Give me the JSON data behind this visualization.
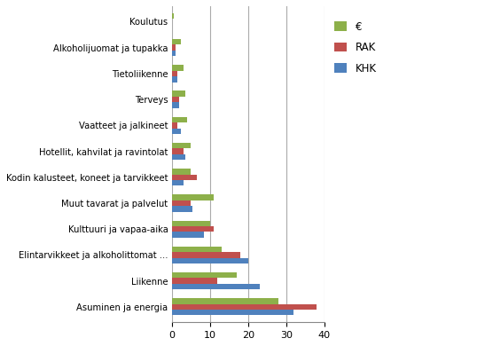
{
  "categories": [
    "Asuminen ja energia",
    "Liikenne",
    "Elintarvikkeet ja alkoholittomat ...",
    "Kulttuuri ja vapaa-aika",
    "Muut tavarat ja palvelut",
    "Kodin kalusteet, koneet ja tarvikkeet",
    "Hotellit, kahvilat ja ravintolat",
    "Vaatteet ja jalkineet",
    "Terveys",
    "Tietoliikenne",
    "Alkoholijuomat ja tupakka",
    "Koulutus"
  ],
  "euro": [
    28.0,
    17.0,
    13.0,
    10.0,
    11.0,
    5.0,
    5.0,
    4.0,
    3.5,
    3.0,
    2.5,
    0.5
  ],
  "rak": [
    38.0,
    12.0,
    18.0,
    11.0,
    5.0,
    6.5,
    3.0,
    1.5,
    2.0,
    1.5,
    1.0,
    0.2
  ],
  "khk": [
    32.0,
    23.0,
    20.0,
    8.5,
    5.5,
    3.0,
    3.5,
    2.5,
    2.0,
    1.5,
    1.0,
    0.2
  ],
  "euro_color": "#8DB04A",
  "rak_color": "#C0504D",
  "khk_color": "#4F81BD",
  "xlim": [
    0,
    40
  ],
  "xticks": [
    0,
    10,
    20,
    30,
    40
  ],
  "grid_color": "#AAAAAA",
  "background_color": "#FFFFFF",
  "legend_labels": [
    "€",
    "RAK",
    "KHK"
  ],
  "bar_height": 0.22,
  "figsize": [
    5.47,
    3.9
  ],
  "dpi": 100
}
